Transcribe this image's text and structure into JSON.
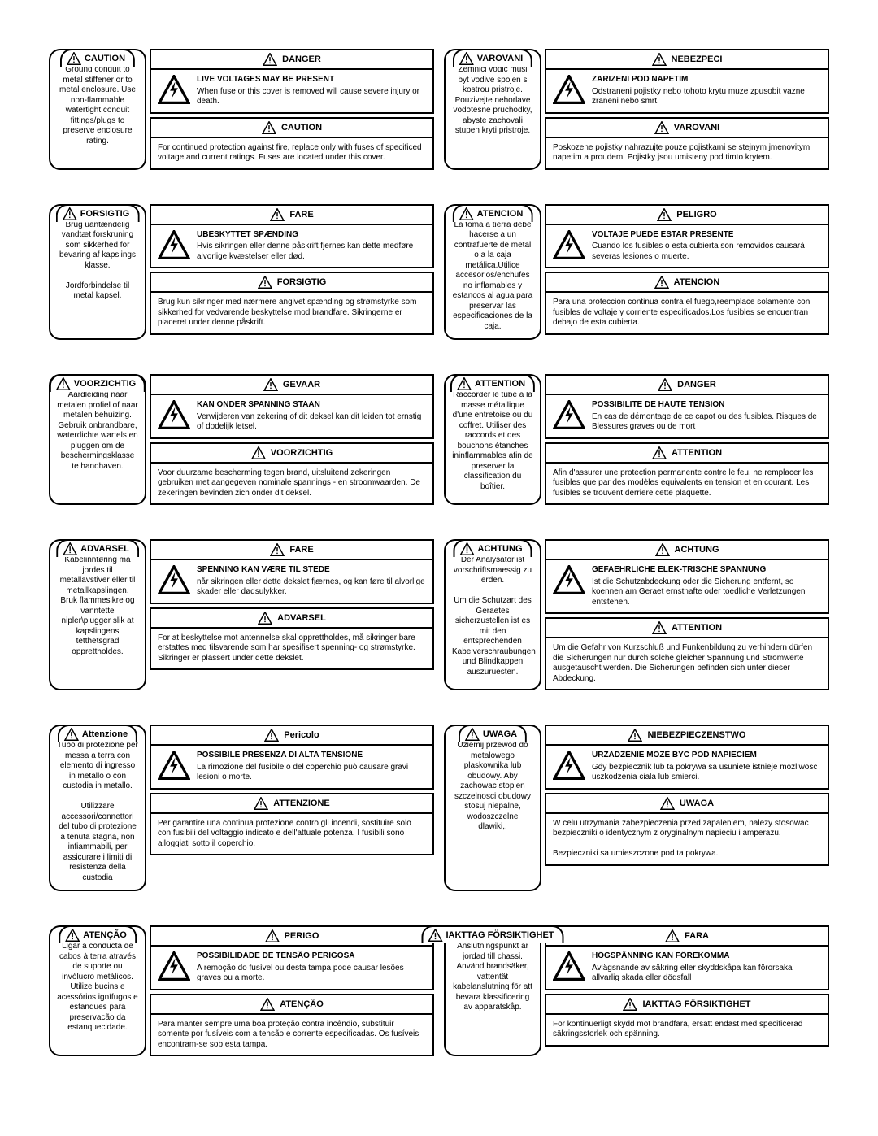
{
  "rows": [
    {
      "left": {
        "col1": {
          "tab": "CAUTION",
          "body": "Ground conduit to metal stiffener or to metal enclosure. Use non-flammable watertight conduit fittings/plugs to preserve enclosure rating."
        },
        "hazard": {
          "head": "DANGER",
          "title": "LIVE VOLTAGES MAY BE PRESENT",
          "text": "When fuse or this cover is removed will cause severe injury or death."
        },
        "caution": {
          "head": "CAUTION",
          "text": "For continued protection against fire, replace only with fuses of specificed voltage and current ratings. Fuses are located under this cover."
        }
      },
      "right": {
        "col1": {
          "tab": "VAROVANI",
          "body": "Zemnici vodic musi byt vodive spojen s kostrou pristroje. Pouzivejte nehorlave vodotesne pruchodky, abyste zachovali stupen kryti pristroje."
        },
        "hazard": {
          "head": "NEBEZPECI",
          "title": "ZARIZENI POD NAPETIM",
          "text": "Odstraneni pojistky nebo tohoto krytu muze zpusobit vazne zraneni nebo smrt."
        },
        "caution": {
          "head": "VAROVANI",
          "text": "Poskozene pojistky nahrazujte pouze pojistkami se stejnym jmenovitym napetim a proudem. Pojistky jsou umisteny pod timto krytem."
        }
      }
    },
    {
      "left": {
        "col1": {
          "tab": "FORSIGTIG",
          "body": "Brug uantændelig vandtæt forskruning som sikkerhed for bevaring af kapslings klasse.\nJordforbindelse til metal kapsel."
        },
        "hazard": {
          "head": "FARE",
          "title": "UBESKYTTET SPÆNDING",
          "text": "Hvis sikringen eller denne påskrift fjernes kan dette medføre alvorlige kvæstelser eller død."
        },
        "caution": {
          "head": "FORSIGTIG",
          "text": "Brug kun sikringer med nærmere angivet spænding og strømstyrke som sikkerhed for vedvarende beskyttelse mod brandfare. Sikringerne er placeret under denne påskrift."
        }
      },
      "right": {
        "col1": {
          "tab": "ATENCION",
          "body": "La toma a tierra debe hacerse a un contrafuerte de metal o a la caja metálica.Utilice accesorios/enchufes no inflamables y estancos al agua para preservar las especificaciones de la caja."
        },
        "hazard": {
          "head": "PELIGRO",
          "title": "VOLTAJE PUEDE ESTAR PRESENTE",
          "text": "Cuando los fusibles o esta cubierta son removidos causará severas lesiones o muerte."
        },
        "caution": {
          "head": "ATENCION",
          "text": "Para una proteccion continua contra el fuego,reemplace solamente con fusibles de voltaje y corriente especificados.Los fusibles se encuentran debajo de esta cubierta."
        }
      }
    },
    {
      "left": {
        "col1": {
          "tab": "VOORZICHTIG",
          "body": "Aardleiding naar metalen profiel of naar metalen behuizing. Gebruik onbrandbare, waterdichte wartels en pluggen om de beschermingsklasse te handhaven."
        },
        "hazard": {
          "head": "GEVAAR",
          "title": "KAN ONDER SPANNING STAAN",
          "text": "Verwijderen van zekering of dit deksel kan dit leiden tot ernstig of dodelijk letsel."
        },
        "caution": {
          "head": "VOORZICHTIG",
          "text": "Voor duurzame bescherming tegen brand, uitsluitend zekeringen gebruiken met aangegeven nominale spannings - en stroomwaarden. De zekeringen bevinden zich onder dit deksel."
        }
      },
      "right": {
        "col1": {
          "tab": "ATTENTION",
          "body": "Raccorder le tube à la masse métallique d'une entretoise ou du coffret. Utiliser des raccords et des bouchons étanches ininflammables afin de preserver la classification du boîtier."
        },
        "hazard": {
          "head": "DANGER",
          "title": "POSSIBILITE DE HAUTE TENSION",
          "text": "En cas de démontage de ce capot ou des fusibles. Risques de Blessures graves ou de mort"
        },
        "caution": {
          "head": "ATTENTION",
          "text": "Afin d'assurer une protection permanente contre le feu, ne remplacer les fusibles que par des modèles equivalents en tension et en courant. Les fusibles se trouvent derriere cette plaquette."
        }
      }
    },
    {
      "left": {
        "col1": {
          "tab": "ADVARSEL",
          "body": "Kabelinnføring må jordes til metallavstiver eller til metallkapslingen. Bruk flammesikre og vanntette nipler\\plugger slik at kapslingens tetthetsgrad opprettholdes."
        },
        "hazard": {
          "head": "FARE",
          "title": "SPENNING KAN VÆRE TIL STEDE",
          "text": "når sikringen eller dette dekslet fjærnes, og kan føre til alvorlige skader eller dødsulykker."
        },
        "caution": {
          "head": "ADVARSEL",
          "text": "For at beskyttelse mot antennelse skal opprettholdes, må sikringer bare erstattes med tilsvarende som har spesifisert spenning- og strømstyrke. Sikringer er plassert under dette dekslet."
        }
      },
      "right": {
        "col1": {
          "tab": "ACHTUNG",
          "body": "Der Analysator ist vorschriftsmaessig zu erden.\nUm die Schutzart des Geraetes sicherzustellen ist es mit den entsprechenden Kabelverschraubungen und Blindkappen auszuruesten."
        },
        "hazard": {
          "head": "ACHTUNG",
          "title": "GEFAEHRLICHE ELEK-TRISCHE SPANNUNG",
          "text": "Ist die Schutzabdeckung oder die Sicherung entfernt, so koennen am Geraet ernsthafte oder toedliche Verletzungen entstehen."
        },
        "caution": {
          "head": "ATTENTION",
          "text": "Um die Gefahr von Kurzschluß und Funkenbildung zu verhindern dürfen die Sicherungen nur durch solche gleicher Spannung und Stromwerte ausgetauscht werden. Die Sicherungen befinden sich unter dieser Abdeckung."
        }
      }
    },
    {
      "left": {
        "col1": {
          "tab": "Attenzione",
          "body": "Tubo di protezione per messa a terra con elemento di ingresso in metallo o con custodia in metallo.\nUtilizzare accessori/connettori del tubo di protezione a tenuta stagna, non infiammabili, per assicurare i limiti di resistenza della custodia"
        },
        "hazard": {
          "head": "Pericolo",
          "title": "POSSIBILE PRESENZA DI ALTA TENSIONE",
          "text": "La rimozione del fusibile o del coperchio può causare gravi lesioni o morte."
        },
        "caution": {
          "head": "ATTENZIONE",
          "text": "Per garantire una continua protezione contro gli incendi, sostituire solo con fusibili del voltaggio indicato e dell'attuale potenza. I fusibili sono alloggiati sotto il coperchio."
        }
      },
      "right": {
        "col1": {
          "tab": "UWAGA",
          "body": "Uziemij przewod do metalowego plaskownika lub obudowy. Aby zachowac stopien szczelnosci obudowy stosuj niepalne, wodoszczelne dlawiki,."
        },
        "hazard": {
          "head": "NIEBEZPIECZENSTWO",
          "title": "URZADZENIE MOZE BYC POD NAPIECIEM",
          "text": "Gdy bezpiecznik lub ta pokrywa sa usuniete istnieje mozliwosc uszkodzenia ciala lub smierci."
        },
        "caution": {
          "head": "UWAGA",
          "text": "W celu utrzymania zabezpieczenia przed zapaleniem, nalezy stosowac bezpieczniki o identycznym z oryginalnym napieciu i amperazu.\nBezpieczniki sa umieszczone pod ta pokrywa."
        }
      }
    },
    {
      "left": {
        "col1": {
          "tab": "ATENÇÃO",
          "body": "Ligar a conducta de cabos à terra através de suporte ou invólucro metálicos. Utilize bucins e acessórios ignífugos e estanques para preservacão da estanquecidade."
        },
        "hazard": {
          "head": "PERIGO",
          "title": "POSSIBILIDADE DE TENSÃO PERIGOSA",
          "text": "A remoção do fusível ou desta tampa pode causar lesões graves ou a morte."
        },
        "caution": {
          "head": "ATENÇÃO",
          "text": "Para manter sempre uma boa proteção contra incêndio, substituir somente por fusíveis com a tensão e corrente especificadas. Os fusíveis encontram-se sob esta tampa."
        }
      },
      "right": {
        "col1": {
          "tab": "IAKTTAG FÖRSIKTIGHET",
          "body": "Anslutningspunkt är jordad till chassi. Använd brandsäker, vattentät kabelanslutning för att bevara klassificering av apparatskåp."
        },
        "hazard": {
          "head": "FARA",
          "title": "HÖGSPÄNNING KAN FÖREKOMMA",
          "text": "Avlägsnande av säkring eller skyddskåpa kan förorsaka allvarlig skada eller dödsfall"
        },
        "caution": {
          "head": "IAKTTAG FÖRSIKTIGHET",
          "text": "För kontinuerligt skydd mot brandfara, ersätt endast med specificerad säkringsstorlek och spänning."
        }
      }
    }
  ]
}
